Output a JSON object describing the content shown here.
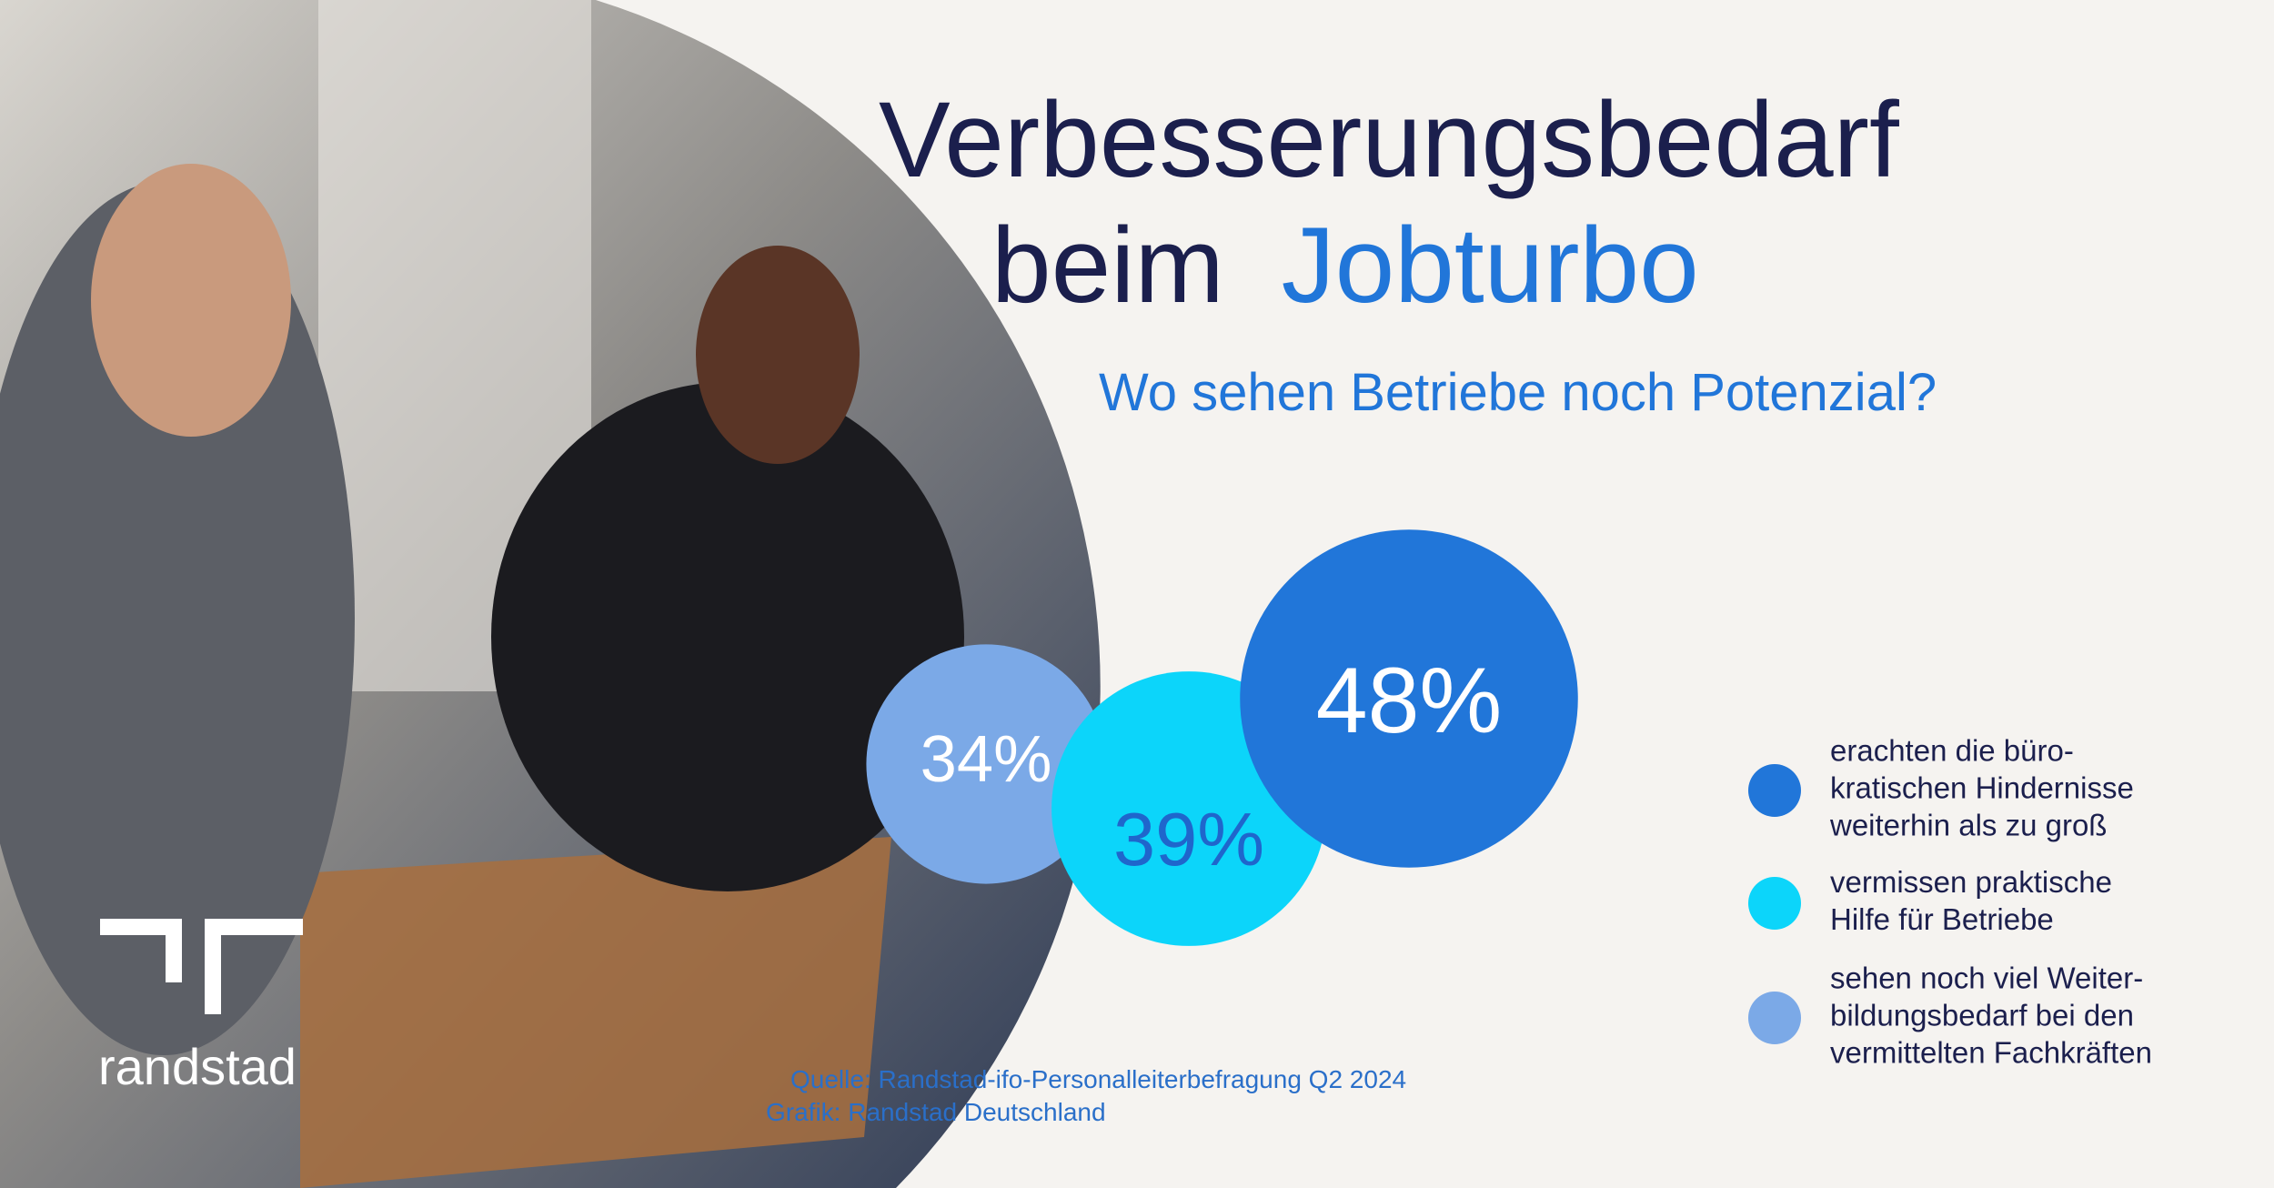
{
  "logo": "randstad",
  "chart_data": {
    "type": "bubble",
    "title": [
      "Verbesserungsbedarf",
      "beim",
      "Jobturbo"
    ],
    "subtitle": "Wo sehen Betriebe noch Potenzial?",
    "series": [
      {
        "name": "erachten die büro-\nkratischen Hindernisse\nweiterhin als zu groß",
        "color": "#2176d9",
        "label_color": "#ffffff",
        "values": [
          48
        ],
        "value_labels": [
          "48%"
        ]
      },
      {
        "name": "vermissen praktische\nHilfe für Betriebe",
        "color": "#0cd5fa",
        "label_color": "#1f66cc",
        "values": [
          39
        ],
        "value_labels": [
          "39%"
        ]
      },
      {
        "name": "sehen noch viel Weiter-\nbildungsbedarf bei den\nvermittelten Fachkräften",
        "color": "#7ba9e7",
        "label_color": "#ffffff",
        "values": [
          34
        ],
        "value_labels": [
          "34%"
        ]
      }
    ],
    "source": [
      "Quelle: Randstad-ifo-Personalleiterbefragung Q2 2024",
      "Grafik: Randstad Deutschland"
    ]
  }
}
